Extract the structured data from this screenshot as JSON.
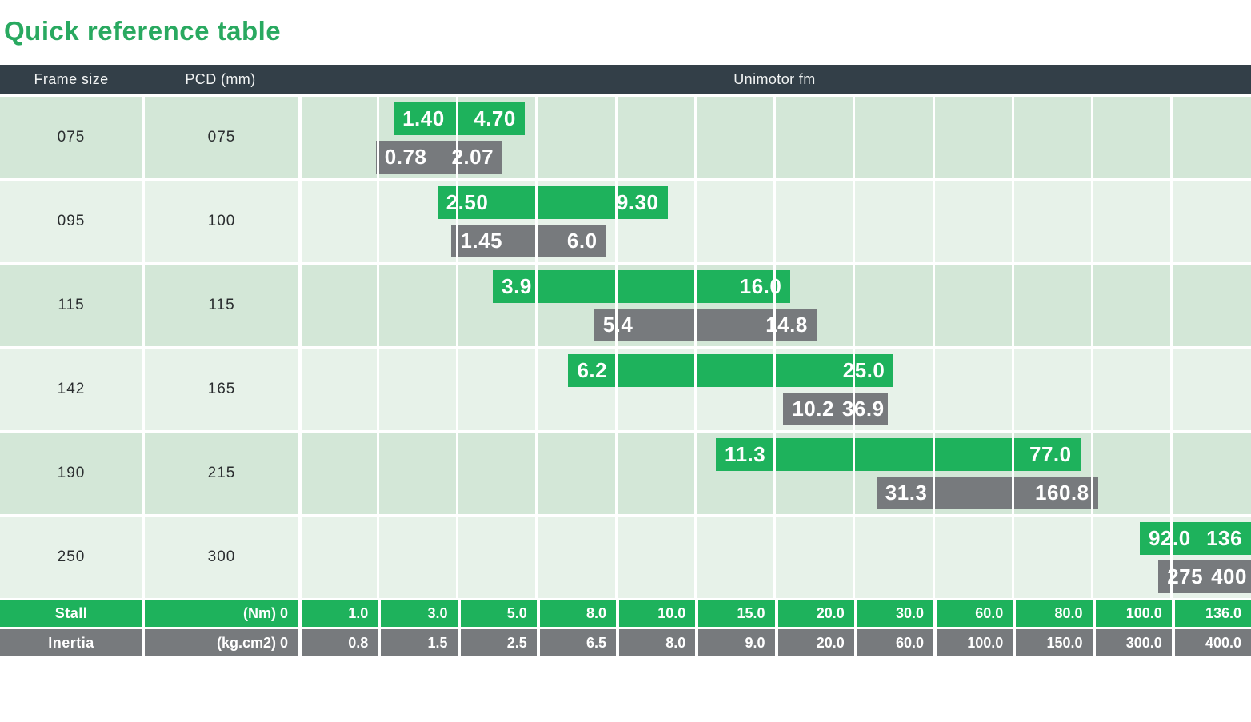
{
  "title": "Quick reference table",
  "colors": {
    "green": "#1eb25c",
    "gray": "#777a7d",
    "header_dark": "#333f48",
    "row_dark": "#d3e7d7",
    "row_light": "#e7f2e9",
    "title_green": "#29a960"
  },
  "header": {
    "frame_size": "Frame size",
    "pcd": "PCD (mm)",
    "unimotor": "Unimotor fm"
  },
  "rows": [
    {
      "frame": "075",
      "pcd": "075",
      "stall_lo": "1.40",
      "stall_hi": "4.70",
      "inertia_lo": "0.78",
      "inertia_hi": "2.07"
    },
    {
      "frame": "095",
      "pcd": "100",
      "stall_lo": "2.50",
      "stall_hi": "9.30",
      "inertia_lo": "1.45",
      "inertia_hi": "6.0"
    },
    {
      "frame": "115",
      "pcd": "115",
      "stall_lo": "3.9",
      "stall_hi": "16.0",
      "inertia_lo": "5.4",
      "inertia_hi": "14.8"
    },
    {
      "frame": "142",
      "pcd": "165",
      "stall_lo": "6.2",
      "stall_hi": "25.0",
      "inertia_lo": "10.2",
      "inertia_hi": "36.9"
    },
    {
      "frame": "190",
      "pcd": "215",
      "stall_lo": "11.3",
      "stall_hi": "77.0",
      "inertia_lo": "31.3",
      "inertia_hi": "160.8"
    },
    {
      "frame": "250",
      "pcd": "300",
      "stall_lo": "92.0",
      "stall_hi": "136",
      "inertia_lo": "275",
      "inertia_hi": "400"
    }
  ],
  "axis": {
    "stall_label": "Stall",
    "stall_unit": "(Nm) 0",
    "stall_ticks": [
      "1.0",
      "3.0",
      "5.0",
      "8.0",
      "10.0",
      "15.0",
      "20.0",
      "30.0",
      "60.0",
      "80.0",
      "100.0",
      "136.0"
    ],
    "inertia_label": "Inertia",
    "inertia_unit": "(kg.cm2) 0",
    "inertia_ticks": [
      "0.8",
      "1.5",
      "2.5",
      "6.5",
      "8.0",
      "9.0",
      "20.0",
      "60.0",
      "100.0",
      "150.0",
      "300.0",
      "400.0"
    ]
  },
  "chart_data": {
    "type": "bar",
    "subtype": "horizontal-range-bars",
    "title": "Quick reference table",
    "group_header": "Unimotor fm",
    "categories_label": "Frame size",
    "categories": [
      "075",
      "095",
      "115",
      "142",
      "190",
      "250"
    ],
    "pcd_label": "PCD (mm)",
    "pcd_values": [
      "075",
      "100",
      "115",
      "165",
      "215",
      "300"
    ],
    "series": [
      {
        "name": "Stall",
        "unit": "Nm",
        "color": "#1eb25c",
        "ranges": [
          [
            1.4,
            4.7
          ],
          [
            2.5,
            9.3
          ],
          [
            3.9,
            16.0
          ],
          [
            6.2,
            25.0
          ],
          [
            11.3,
            77.0
          ],
          [
            92.0,
            136.0
          ]
        ]
      },
      {
        "name": "Inertia",
        "unit": "kg.cm2",
        "color": "#777a7d",
        "ranges": [
          [
            0.78,
            2.07
          ],
          [
            1.45,
            6.0
          ],
          [
            5.4,
            14.8
          ],
          [
            10.2,
            36.9
          ],
          [
            31.3,
            160.8
          ],
          [
            275.0,
            400.0
          ]
        ]
      }
    ],
    "axis_ticks_stall": [
      0,
      1.0,
      3.0,
      5.0,
      8.0,
      10.0,
      15.0,
      20.0,
      30.0,
      60.0,
      80.0,
      100.0,
      136.0
    ],
    "axis_ticks_inertia": [
      0,
      0.8,
      1.5,
      2.5,
      6.5,
      8.0,
      9.0,
      20.0,
      60.0,
      100.0,
      150.0,
      300.0,
      400.0
    ],
    "axis_scale": "piecewise-linear, equal-width columns between consecutive ticks",
    "grid": true,
    "legend_position": "none"
  }
}
